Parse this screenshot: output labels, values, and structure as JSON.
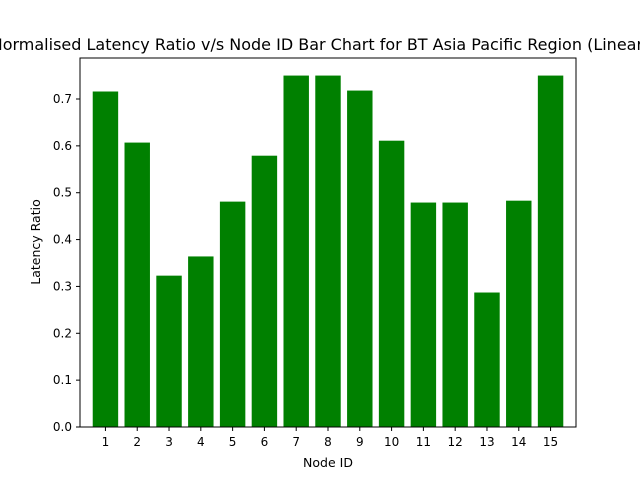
{
  "chart_data": {
    "type": "bar",
    "title": "Normalised Latency Ratio v/s Node ID Bar Chart for BT Asia Pacific Region (Linear)",
    "xlabel": "Node ID",
    "ylabel": "Latency Ratio",
    "categories": [
      "1",
      "2",
      "3",
      "4",
      "5",
      "6",
      "7",
      "8",
      "9",
      "10",
      "11",
      "12",
      "13",
      "14",
      "15"
    ],
    "values": [
      0.716,
      0.607,
      0.323,
      0.364,
      0.481,
      0.579,
      0.75,
      0.75,
      0.718,
      0.611,
      0.479,
      0.479,
      0.287,
      0.483,
      0.75
    ],
    "ylim": [
      0,
      0.7875
    ],
    "yticks": [
      0.0,
      0.1,
      0.2,
      0.3,
      0.4,
      0.5,
      0.6,
      0.7
    ],
    "ytick_labels": [
      "0.0",
      "0.1",
      "0.2",
      "0.3",
      "0.4",
      "0.5",
      "0.6",
      "0.7"
    ],
    "bar_color": "#008000",
    "grid": false,
    "legend": "none"
  }
}
